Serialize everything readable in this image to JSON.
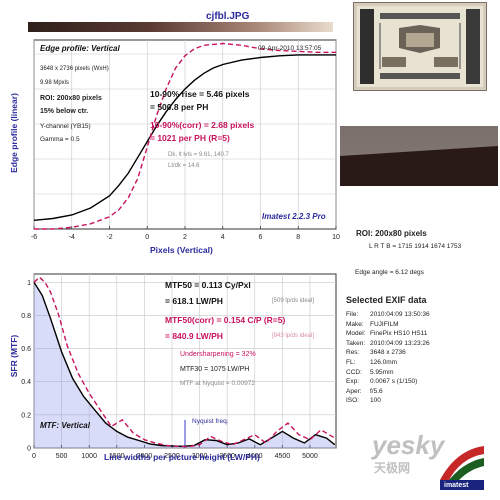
{
  "title": "cjfbl.JPG",
  "colors": {
    "accent_red": "#c8135e",
    "axis_blue": "#2a2a9a",
    "curve_black": "#000000"
  },
  "edge_panel": {
    "heading": "Edge profile: Vertical",
    "timestamp": "09-Apr-2010 13:57:05",
    "image_size": "3648 x 2736 pixels (WxH)",
    "megapixels": "9.98 Mpxls",
    "roi": "ROI: 200x80 pixels",
    "below": "15% below ctr.",
    "channel": "Y-channel  (YB15)",
    "gamma": "Gamma = 0.5",
    "rise_line": "10-90% rise = 5.46 pixels",
    "rise_ph": "= 500.8 per PH",
    "corr_line": "10-90%(corr) = 2.68 pixels",
    "corr_ph": "= 1021 per PH  (R=5)",
    "dk": "Dk, lt lvls = 9.61, 140.7",
    "ltdk": "Lt/dk = 14.6",
    "version": "Imatest 2.2.3 Pro",
    "ylabel": "Edge profile (linear)",
    "xlabel": "Pixels (Vertical)"
  },
  "mtf_panel": {
    "mtf50": "MTF50 = 0.113 Cy/Pxl",
    "mtf50_lw": "= 618.1 LW/PH",
    "ideal1": "[509 lp/ds ideal]",
    "mtf50_corr": "MTF50(corr) = 0.154  C/P  (R=5)",
    "mtf50_corr_lw": "= 840.9 LW/PH",
    "ideal2": "[843 lp/ds ideal]",
    "undersharp": "Undersharpening = 32%",
    "mtf30": "MTF30 = 1075 LW/PH",
    "nyquist_mtf": "MTF at Nyquist = 0.00972",
    "nyquist_label": "Nyquist freq.",
    "caption": "MTF: Vertical",
    "ylabel": "SFR (MTF)",
    "xlabel": "Line widths per picture height (LW/PH)"
  },
  "right_panel": {
    "roi": "ROI: 200x80 pixels",
    "lrtb": "L R  T B = 1715 1914  1674 1753",
    "edge_angle": "Edge angle = 6.12 degs",
    "exif_title": "Selected EXIF data",
    "exif": [
      {
        "k": "File:",
        "v": "2010:04:09 13:50:36"
      },
      {
        "k": "Make:",
        "v": "FUJIFILM"
      },
      {
        "k": "Model:",
        "v": "FinePix HS10 HS11"
      },
      {
        "k": "Taken:",
        "v": "2010:04:09 13:23:26"
      },
      {
        "k": "Res:",
        "v": "3648 x 2736"
      },
      {
        "k": "FL:",
        "v": "126.0mm"
      },
      {
        "k": "CCD:",
        "v": "5.95mm"
      },
      {
        "k": "Exp:",
        "v": "0.0067 s  (1/150)"
      },
      {
        "k": "Aper:",
        "v": "f/5.6"
      },
      {
        "k": "ISO:",
        "v": "100"
      }
    ]
  },
  "watermark": {
    "text1": "yesky",
    "text2": "天极网",
    "logo": "imatest"
  },
  "chart_data": [
    {
      "type": "line",
      "title": "Edge profile: Vertical",
      "xlabel": "Pixels (Vertical)",
      "ylabel": "Edge profile (linear)",
      "xlim": [
        -6,
        10
      ],
      "ylim": [
        0,
        1.08
      ],
      "x_ticks": [
        "-6",
        "-4",
        "-2",
        "0",
        "2",
        "4",
        "6",
        "8",
        "10"
      ],
      "grid": true,
      "series": [
        {
          "color": "#000000",
          "style": "solid",
          "x": [
            -6,
            -5,
            -4,
            -3,
            -2,
            -1.5,
            -1,
            -0.5,
            0,
            0.5,
            1,
            1.5,
            2,
            2.5,
            3,
            3.5,
            4,
            5,
            6,
            7,
            8,
            9,
            10
          ],
          "y": [
            0.05,
            0.06,
            0.08,
            0.12,
            0.19,
            0.25,
            0.32,
            0.41,
            0.5,
            0.59,
            0.67,
            0.74,
            0.8,
            0.85,
            0.89,
            0.92,
            0.94,
            0.965,
            0.98,
            0.99,
            0.995,
            0.995,
            0.995
          ]
        },
        {
          "color": "#c8135e",
          "style": "dashed",
          "x": [
            -6,
            -5,
            -4,
            -3,
            -2,
            -1.5,
            -1,
            -0.5,
            0,
            0.5,
            1,
            1.5,
            2,
            2.5,
            3,
            4,
            5,
            6,
            7,
            8,
            9,
            10
          ],
          "y": [
            0.0,
            0.0,
            0.01,
            0.03,
            0.07,
            0.11,
            0.18,
            0.29,
            0.47,
            0.65,
            0.8,
            0.92,
            0.99,
            1.03,
            1.05,
            1.06,
            1.05,
            1.03,
            1.02,
            1.015,
            1.01,
            1.01
          ]
        }
      ]
    },
    {
      "type": "line",
      "title": "MTF: Vertical",
      "xlabel": "Line widths per picture height (LW/PH)",
      "ylabel": "SFR (MTF)",
      "xlim": [
        0,
        5472
      ],
      "ylim": [
        0,
        1.05
      ],
      "x_ticks": [
        "0",
        "500",
        "1000",
        "1500",
        "2000",
        "2500",
        "3000",
        "3500",
        "4000",
        "4500",
        "5000"
      ],
      "y_ticks": [
        "0",
        "0.2",
        "0.4",
        "0.6",
        "0.8",
        "1"
      ],
      "nyquist_x": 2736,
      "grid": true,
      "series": [
        {
          "color": "#000000",
          "style": "solid",
          "x": [
            0,
            150,
            300,
            500,
            700,
            900,
            1100,
            1300,
            1500,
            1700,
            1900,
            2100,
            2300,
            2500,
            2700,
            2900,
            3100,
            3300,
            3500,
            3700,
            3900,
            4100,
            4300,
            4500,
            4700,
            4900,
            5100,
            5300,
            5450
          ],
          "y": [
            1.0,
            0.92,
            0.78,
            0.58,
            0.42,
            0.31,
            0.23,
            0.15,
            0.1,
            0.065,
            0.045,
            0.025,
            0.015,
            0.012,
            0.01,
            0.015,
            0.05,
            0.045,
            0.02,
            0.03,
            0.055,
            0.02,
            0.06,
            0.1,
            0.06,
            0.03,
            0.08,
            0.06,
            0.02
          ]
        },
        {
          "color": "#c8135e",
          "style": "dashed",
          "x": [
            0,
            100,
            200,
            300,
            450,
            600,
            800,
            1000,
            1200,
            1400,
            1600,
            1800,
            2000,
            2200,
            2400,
            2600,
            2800,
            3000,
            3200,
            3400,
            3600,
            3800,
            4000,
            4200,
            4400,
            4600,
            4800,
            5000,
            5200,
            5450
          ],
          "y": [
            1.0,
            1.03,
            1.0,
            0.94,
            0.8,
            0.62,
            0.45,
            0.33,
            0.23,
            0.13,
            0.17,
            0.09,
            0.05,
            0.03,
            0.015,
            0.01,
            0.008,
            0.02,
            0.07,
            0.04,
            0.02,
            0.05,
            0.08,
            0.03,
            0.1,
            0.15,
            0.08,
            0.05,
            0.11,
            0.06
          ]
        }
      ]
    }
  ]
}
